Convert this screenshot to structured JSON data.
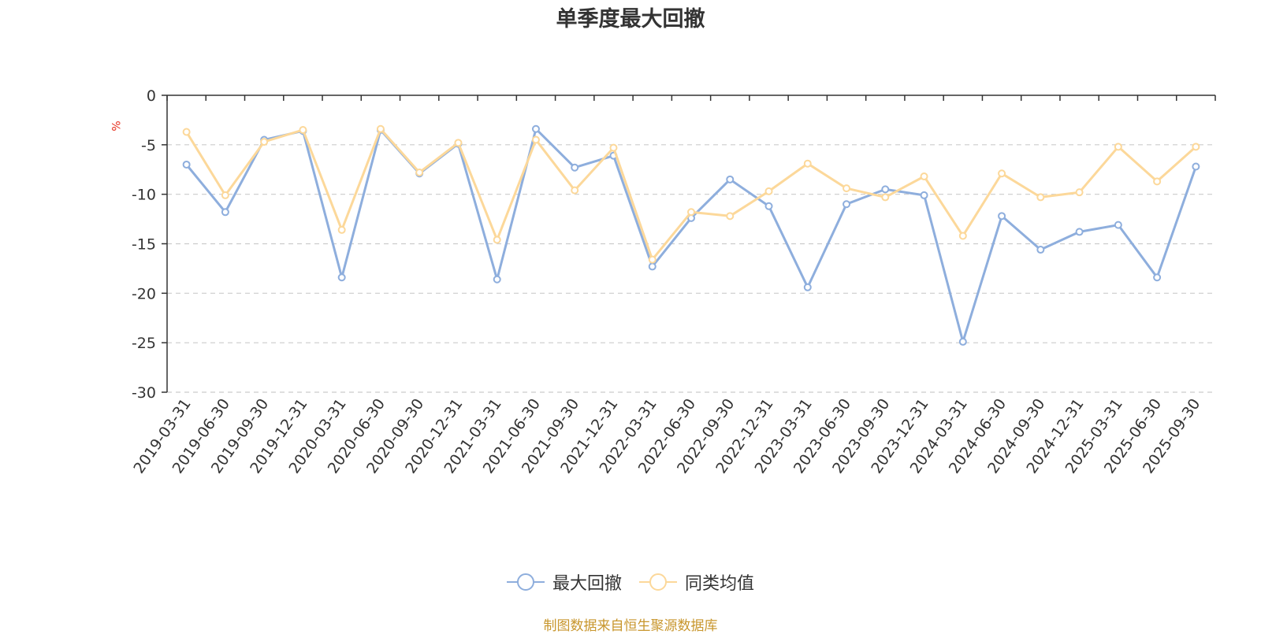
{
  "chart_data": {
    "type": "line",
    "title": "单季度最大回撤",
    "ylabel": "%",
    "ylim": [
      -30,
      0
    ],
    "yticks": [
      0,
      -5,
      -10,
      -15,
      -20,
      -25,
      -30
    ],
    "grid": true,
    "legend_position": "bottom",
    "categories": [
      "2019-03-31",
      "2019-06-30",
      "2019-09-30",
      "2019-12-31",
      "2020-03-31",
      "2020-06-30",
      "2020-09-30",
      "2020-12-31",
      "2021-03-31",
      "2021-06-30",
      "2021-09-30",
      "2021-12-31",
      "2022-03-31",
      "2022-06-30",
      "2022-09-30",
      "2022-12-31",
      "2023-03-31",
      "2023-06-30",
      "2023-09-30",
      "2023-12-31",
      "2024-03-31",
      "2024-06-30",
      "2024-09-30",
      "2024-12-31",
      "2025-03-31",
      "2025-06-30",
      "2025-09-30"
    ],
    "series": [
      {
        "name": "最大回撤",
        "color": "#8eaedd",
        "values": [
          -7.0,
          -11.8,
          -4.5,
          -3.6,
          -18.4,
          -3.5,
          -7.9,
          -4.9,
          -18.6,
          -3.4,
          -7.3,
          -6.1,
          -17.3,
          -12.4,
          -8.5,
          -11.2,
          -19.4,
          -11.0,
          -9.5,
          -10.1,
          -24.9,
          -12.2,
          -15.6,
          -13.8,
          -13.1,
          -18.4,
          -7.2
        ]
      },
      {
        "name": "同类均值",
        "color": "#fcd89a",
        "values": [
          -3.7,
          -10.1,
          -4.7,
          -3.5,
          -13.6,
          -3.4,
          -7.8,
          -4.8,
          -14.6,
          -4.5,
          -9.6,
          -5.3,
          -16.6,
          -11.8,
          -12.2,
          -9.7,
          -6.9,
          -9.4,
          -10.3,
          -8.2,
          -14.2,
          -7.9,
          -10.3,
          -9.8,
          -5.2,
          -8.7,
          -5.2
        ]
      }
    ]
  },
  "source_text": "制图数据来自恒生聚源数据库"
}
